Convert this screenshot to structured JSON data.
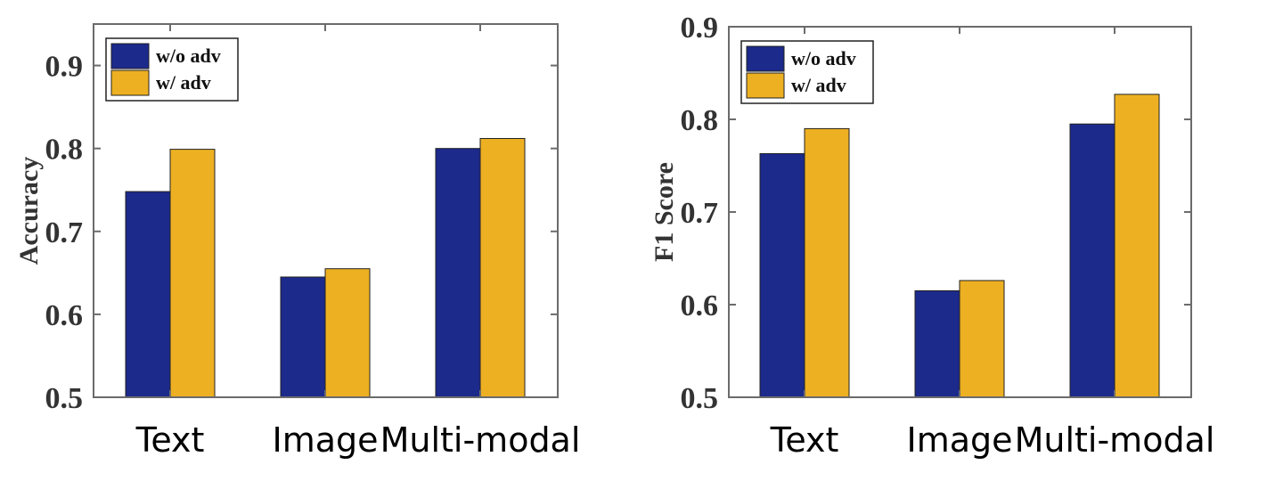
{
  "colors": {
    "series1": "#1c2a8c",
    "series2": "#edb022"
  },
  "chart_data": [
    {
      "type": "bar",
      "categories": [
        "Text",
        "Image",
        "Multi-modal"
      ],
      "series": [
        {
          "name": "w/o adv",
          "values": [
            0.748,
            0.645,
            0.8
          ]
        },
        {
          "name": "w/ adv",
          "values": [
            0.799,
            0.655,
            0.812
          ]
        }
      ],
      "ylabel": "Accuracy",
      "ylim": [
        0.5,
        0.95
      ],
      "yticks": [
        0.5,
        0.6,
        0.7,
        0.8,
        0.9
      ],
      "ytick_labels": [
        "0.5",
        "0.6",
        "0.7",
        "0.8",
        "0.9"
      ],
      "legend": "top-left"
    },
    {
      "type": "bar",
      "categories": [
        "Text",
        "Image",
        "Multi-modal"
      ],
      "series": [
        {
          "name": "w/o adv",
          "values": [
            0.763,
            0.615,
            0.795
          ]
        },
        {
          "name": "w/ adv",
          "values": [
            0.79,
            0.626,
            0.827
          ]
        }
      ],
      "ylabel": "F1 Score",
      "ylim": [
        0.5,
        0.9
      ],
      "yticks": [
        0.5,
        0.6,
        0.7,
        0.8,
        0.9
      ],
      "ytick_labels": [
        "0.5",
        "0.6",
        "0.7",
        "0.8",
        "0.9"
      ],
      "legend": "top-left"
    }
  ]
}
